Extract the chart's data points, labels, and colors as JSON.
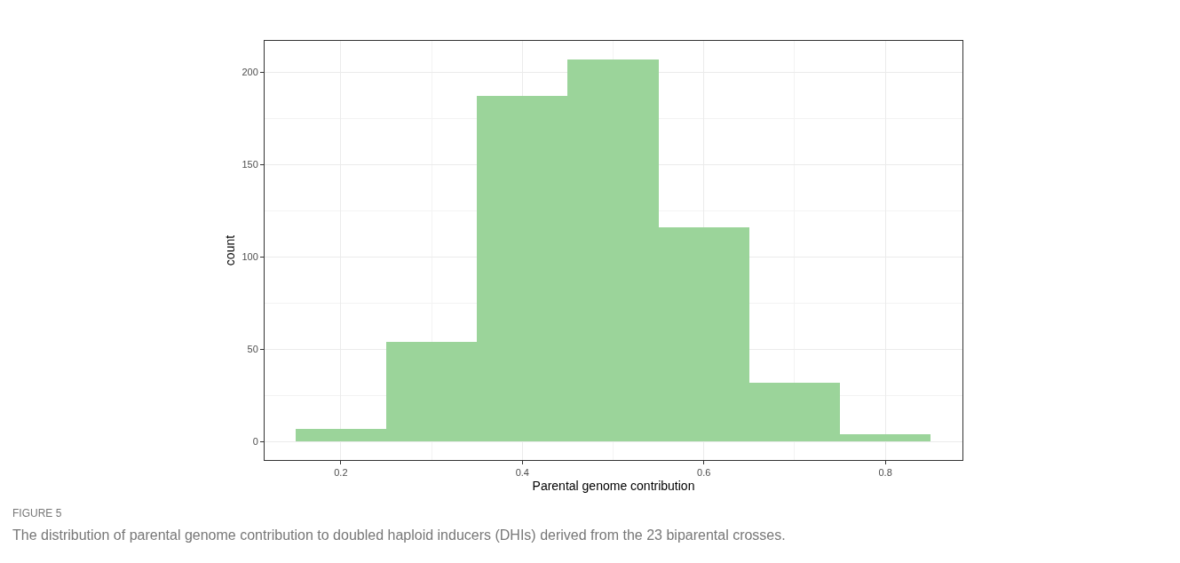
{
  "chart_data": {
    "type": "histogram",
    "xlabel": "Parental genome contribution",
    "ylabel": "count",
    "bins": [
      0.15,
      0.25,
      0.35,
      0.45,
      0.55,
      0.65,
      0.75,
      0.85
    ],
    "values": [
      7,
      54,
      187,
      207,
      116,
      32,
      4
    ],
    "color": "#9bd49a",
    "xlim": [
      0.116,
      0.885
    ],
    "xticks": [
      0.2,
      0.4,
      0.6,
      0.8
    ],
    "ylim": [
      -10,
      217
    ],
    "yticks": [
      0,
      50,
      100,
      150,
      200
    ],
    "grid": true,
    "annotations": [
      "FIGURE 5",
      "The distribution of parental genome contribution to doubled haploid inducers (DHIs) derived from the 23 biparental crosses."
    ]
  }
}
